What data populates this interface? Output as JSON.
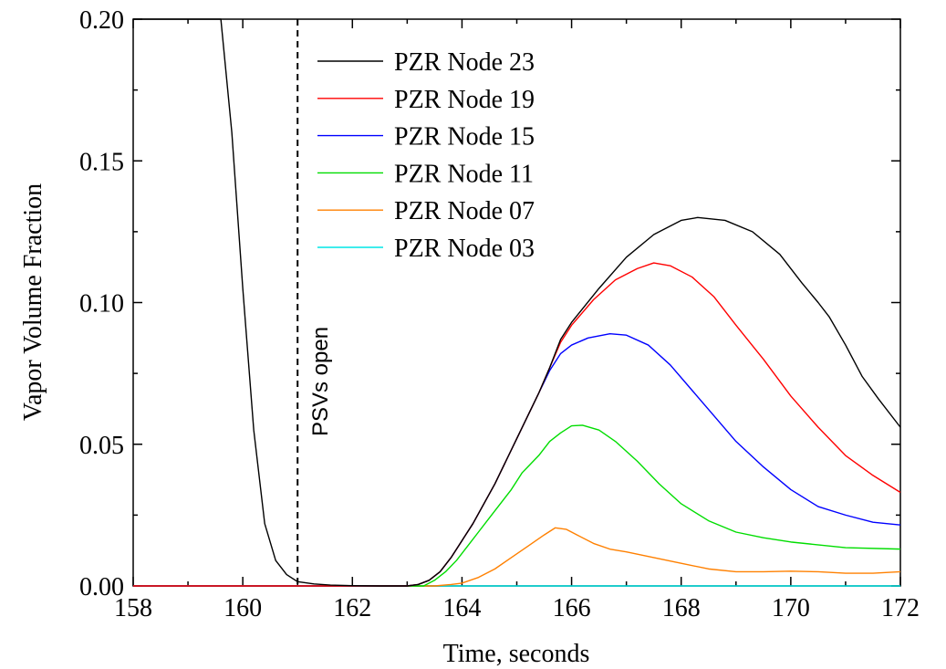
{
  "chart_data": {
    "type": "line",
    "title": "",
    "xlabel": "Time, seconds",
    "ylabel": "Vapor Volume Fraction",
    "xlim": [
      158,
      172
    ],
    "ylim": [
      0.0,
      0.2
    ],
    "x_ticks": [
      "158",
      "160",
      "162",
      "164",
      "166",
      "168",
      "170",
      "172"
    ],
    "y_ticks": [
      "0.00",
      "0.05",
      "0.10",
      "0.15",
      "0.20"
    ],
    "grid": false,
    "legend_position": "top-center",
    "annotations": [
      {
        "type": "vertical_dashed_line",
        "x": 161,
        "label": "PSVs open"
      }
    ],
    "series": [
      {
        "name": "PZR Node 23",
        "color": "#000000",
        "points": [
          [
            158,
            0.2
          ],
          [
            159.6,
            0.2
          ],
          [
            159.8,
            0.16
          ],
          [
            160.0,
            0.105
          ],
          [
            160.2,
            0.055
          ],
          [
            160.4,
            0.022
          ],
          [
            160.6,
            0.009
          ],
          [
            160.8,
            0.004
          ],
          [
            161.0,
            0.0015
          ],
          [
            161.3,
            0.0007
          ],
          [
            161.6,
            0.0003
          ],
          [
            162.0,
            0.0001
          ],
          [
            162.5,
            0.0
          ],
          [
            163.0,
            0.0
          ],
          [
            163.2,
            0.0005
          ],
          [
            163.4,
            0.002
          ],
          [
            163.6,
            0.005
          ],
          [
            163.8,
            0.01
          ],
          [
            164.0,
            0.016
          ],
          [
            164.2,
            0.022
          ],
          [
            164.4,
            0.029
          ],
          [
            164.6,
            0.036
          ],
          [
            164.8,
            0.044
          ],
          [
            165.0,
            0.052
          ],
          [
            165.2,
            0.06
          ],
          [
            165.4,
            0.068
          ],
          [
            165.6,
            0.077
          ],
          [
            165.8,
            0.087
          ],
          [
            166.0,
            0.093
          ],
          [
            166.5,
            0.105
          ],
          [
            167.0,
            0.116
          ],
          [
            167.5,
            0.124
          ],
          [
            168.0,
            0.129
          ],
          [
            168.3,
            0.13
          ],
          [
            168.8,
            0.129
          ],
          [
            169.3,
            0.125
          ],
          [
            169.8,
            0.117
          ],
          [
            170.2,
            0.107
          ],
          [
            170.5,
            0.1
          ],
          [
            170.7,
            0.095
          ],
          [
            171.0,
            0.085
          ],
          [
            171.3,
            0.074
          ],
          [
            171.6,
            0.066
          ],
          [
            172.0,
            0.056
          ]
        ]
      },
      {
        "name": "PZR Node 19",
        "color": "#ff0000",
        "points": [
          [
            158,
            0.0
          ],
          [
            163.0,
            0.0
          ],
          [
            163.2,
            0.0005
          ],
          [
            163.4,
            0.002
          ],
          [
            163.6,
            0.005
          ],
          [
            163.8,
            0.01
          ],
          [
            164.0,
            0.016
          ],
          [
            164.2,
            0.022
          ],
          [
            164.4,
            0.029
          ],
          [
            164.6,
            0.036
          ],
          [
            164.8,
            0.044
          ],
          [
            165.0,
            0.052
          ],
          [
            165.2,
            0.06
          ],
          [
            165.4,
            0.068
          ],
          [
            165.6,
            0.077
          ],
          [
            165.8,
            0.086
          ],
          [
            166.0,
            0.092
          ],
          [
            166.4,
            0.101
          ],
          [
            166.8,
            0.108
          ],
          [
            167.2,
            0.112
          ],
          [
            167.5,
            0.114
          ],
          [
            167.8,
            0.113
          ],
          [
            168.2,
            0.109
          ],
          [
            168.6,
            0.102
          ],
          [
            169.0,
            0.092
          ],
          [
            169.5,
            0.08
          ],
          [
            170.0,
            0.067
          ],
          [
            170.5,
            0.056
          ],
          [
            171.0,
            0.046
          ],
          [
            171.5,
            0.039
          ],
          [
            172.0,
            0.033
          ]
        ]
      },
      {
        "name": "PZR Node 15",
        "color": "#0000ff",
        "points": [
          [
            158,
            0.0
          ],
          [
            163.0,
            0.0
          ],
          [
            163.2,
            0.0005
          ],
          [
            163.4,
            0.002
          ],
          [
            163.6,
            0.005
          ],
          [
            163.8,
            0.01
          ],
          [
            164.0,
            0.016
          ],
          [
            164.2,
            0.022
          ],
          [
            164.4,
            0.029
          ],
          [
            164.6,
            0.036
          ],
          [
            164.8,
            0.044
          ],
          [
            165.0,
            0.052
          ],
          [
            165.2,
            0.06
          ],
          [
            165.4,
            0.068
          ],
          [
            165.6,
            0.076
          ],
          [
            165.8,
            0.082
          ],
          [
            166.0,
            0.085
          ],
          [
            166.3,
            0.0875
          ],
          [
            166.7,
            0.089
          ],
          [
            167.0,
            0.0885
          ],
          [
            167.4,
            0.085
          ],
          [
            167.8,
            0.078
          ],
          [
            168.2,
            0.069
          ],
          [
            168.6,
            0.06
          ],
          [
            169.0,
            0.051
          ],
          [
            169.5,
            0.042
          ],
          [
            170.0,
            0.034
          ],
          [
            170.5,
            0.028
          ],
          [
            171.0,
            0.025
          ],
          [
            171.5,
            0.0225
          ],
          [
            172.0,
            0.0215
          ]
        ]
      },
      {
        "name": "PZR Node 11",
        "color": "#00dd00",
        "points": [
          [
            158,
            0.0
          ],
          [
            163.3,
            0.0
          ],
          [
            163.5,
            0.002
          ],
          [
            163.7,
            0.005
          ],
          [
            163.9,
            0.009
          ],
          [
            164.1,
            0.014
          ],
          [
            164.3,
            0.019
          ],
          [
            164.5,
            0.024
          ],
          [
            164.7,
            0.029
          ],
          [
            164.9,
            0.034
          ],
          [
            165.1,
            0.04
          ],
          [
            165.2,
            0.042
          ],
          [
            165.4,
            0.046
          ],
          [
            165.6,
            0.051
          ],
          [
            165.8,
            0.054
          ],
          [
            166.0,
            0.0565
          ],
          [
            166.2,
            0.0567
          ],
          [
            166.5,
            0.055
          ],
          [
            166.8,
            0.051
          ],
          [
            167.2,
            0.044
          ],
          [
            167.6,
            0.036
          ],
          [
            168.0,
            0.029
          ],
          [
            168.5,
            0.023
          ],
          [
            169.0,
            0.019
          ],
          [
            169.5,
            0.017
          ],
          [
            170.0,
            0.0155
          ],
          [
            171.0,
            0.0135
          ],
          [
            172.0,
            0.013
          ]
        ]
      },
      {
        "name": "PZR Node 07",
        "color": "#ff8000",
        "points": [
          [
            158,
            0.0
          ],
          [
            163.5,
            0.0
          ],
          [
            163.8,
            0.0005
          ],
          [
            164.0,
            0.001
          ],
          [
            164.3,
            0.003
          ],
          [
            164.6,
            0.006
          ],
          [
            164.9,
            0.01
          ],
          [
            165.2,
            0.014
          ],
          [
            165.5,
            0.018
          ],
          [
            165.7,
            0.0205
          ],
          [
            165.9,
            0.02
          ],
          [
            166.1,
            0.018
          ],
          [
            166.4,
            0.015
          ],
          [
            166.7,
            0.013
          ],
          [
            167.0,
            0.012
          ],
          [
            167.5,
            0.01
          ],
          [
            168.0,
            0.008
          ],
          [
            168.5,
            0.006
          ],
          [
            169.0,
            0.005
          ],
          [
            169.5,
            0.005
          ],
          [
            170.0,
            0.0052
          ],
          [
            170.5,
            0.005
          ],
          [
            171.0,
            0.0045
          ],
          [
            171.5,
            0.0045
          ],
          [
            172.0,
            0.005
          ]
        ]
      },
      {
        "name": "PZR Node 03",
        "color": "#00e5e5",
        "points": [
          [
            158,
            0.0
          ],
          [
            172,
            0.0
          ]
        ]
      }
    ]
  }
}
